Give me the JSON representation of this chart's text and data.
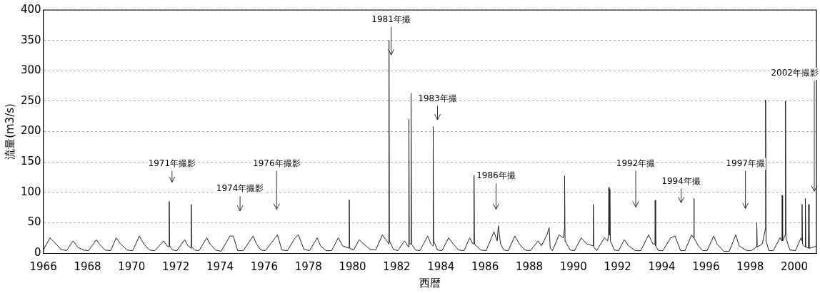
{
  "chart_data": {
    "type": "line",
    "xlabel": "西暦",
    "ylabel": "流量(m3/s)",
    "xlim": [
      1966,
      2001
    ],
    "xticks": [
      1966,
      1968,
      1970,
      1972,
      1974,
      1976,
      1978,
      1980,
      1982,
      1984,
      1986,
      1988,
      1990,
      1992,
      1994,
      1996,
      1998,
      2000
    ],
    "ylim": [
      0,
      400
    ],
    "yticks": [
      0,
      50,
      100,
      150,
      200,
      250,
      300,
      350,
      400
    ],
    "grid": "y",
    "marker": "none",
    "line_style": "solid",
    "legend": false,
    "series": [
      {
        "color": "#222222",
        "x": [
          1966.0,
          1966.3,
          1966.5,
          1966.8,
          1967.05,
          1967.35,
          1967.55,
          1967.8,
          1968.05,
          1968.4,
          1968.55,
          1968.8,
          1969.05,
          1969.3,
          1969.5,
          1969.8,
          1970.05,
          1970.35,
          1970.55,
          1970.8,
          1971.05,
          1971.45,
          1971.6,
          1971.69,
          1971.7,
          1971.72,
          1971.85,
          1972.05,
          1972.4,
          1972.55,
          1972.69,
          1972.7,
          1972.72,
          1972.85,
          1973.05,
          1973.4,
          1973.55,
          1973.8,
          1974.05,
          1974.45,
          1974.6,
          1974.8,
          1975.05,
          1975.5,
          1975.65,
          1975.85,
          1976.05,
          1976.5,
          1976.6,
          1976.8,
          1977.05,
          1977.4,
          1977.55,
          1977.8,
          1978.05,
          1978.4,
          1978.55,
          1978.8,
          1979.05,
          1979.35,
          1979.55,
          1979.84,
          1979.85,
          1979.87,
          1980.05,
          1980.3,
          1980.5,
          1980.8,
          1981.05,
          1981.35,
          1981.55,
          1981.64,
          1981.65,
          1981.67,
          1981.85,
          1982.05,
          1982.35,
          1982.5,
          1982.54,
          1982.55,
          1982.57,
          1982.64,
          1982.65,
          1982.67,
          1982.85,
          1983.05,
          1983.4,
          1983.55,
          1983.64,
          1983.65,
          1983.67,
          1983.85,
          1984.05,
          1984.35,
          1984.55,
          1984.8,
          1985.05,
          1985.3,
          1985.45,
          1985.49,
          1985.5,
          1985.52,
          1985.8,
          1986.05,
          1986.4,
          1986.55,
          1986.6,
          1986.7,
          1986.85,
          1987.05,
          1987.35,
          1987.55,
          1987.8,
          1988.05,
          1988.4,
          1988.55,
          1988.8,
          1988.9,
          1988.95,
          1989.05,
          1989.35,
          1989.55,
          1989.59,
          1989.6,
          1989.62,
          1989.85,
          1990.05,
          1990.35,
          1990.6,
          1990.89,
          1990.9,
          1990.92,
          1991.05,
          1991.4,
          1991.55,
          1991.59,
          1991.6,
          1991.62,
          1991.64,
          1991.65,
          1991.67,
          1991.85,
          1992.05,
          1992.3,
          1992.5,
          1992.8,
          1993.05,
          1993.4,
          1993.6,
          1993.69,
          1993.7,
          1993.72,
          1993.85,
          1994.05,
          1994.4,
          1994.6,
          1994.85,
          1995.05,
          1995.35,
          1995.44,
          1995.45,
          1995.47,
          1995.65,
          1995.85,
          1996.05,
          1996.35,
          1996.5,
          1996.8,
          1997.05,
          1997.35,
          1997.5,
          1997.85,
          1998.05,
          1998.29,
          1998.3,
          1998.32,
          1998.55,
          1998.69,
          1998.7,
          1998.72,
          1998.85,
          1999.05,
          1999.35,
          1999.44,
          1999.45,
          1999.47,
          1999.59,
          1999.6,
          1999.62,
          1999.8,
          2000.05,
          2000.3,
          2000.34,
          2000.35,
          2000.37,
          2000.49,
          2000.5,
          2000.52,
          2000.64,
          2000.65,
          2000.67,
          2000.9,
          2001.0
        ],
        "values": [
          5,
          25,
          18,
          6,
          4,
          20,
          10,
          5,
          4,
          22,
          14,
          5,
          4,
          25,
          15,
          5,
          4,
          28,
          15,
          5,
          4,
          20,
          12,
          10,
          85,
          12,
          5,
          4,
          22,
          12,
          8,
          80,
          10,
          5,
          4,
          25,
          15,
          5,
          3,
          28,
          28,
          4,
          4,
          28,
          15,
          5,
          4,
          25,
          30,
          5,
          4,
          25,
          30,
          6,
          4,
          25,
          12,
          4,
          4,
          25,
          12,
          8,
          88,
          8,
          5,
          22,
          15,
          6,
          5,
          30,
          20,
          15,
          350,
          20,
          6,
          4,
          20,
          12,
          10,
          220,
          15,
          15,
          263,
          15,
          5,
          4,
          28,
          15,
          12,
          208,
          20,
          5,
          4,
          25,
          15,
          5,
          4,
          25,
          15,
          15,
          128,
          15,
          5,
          4,
          35,
          20,
          45,
          15,
          5,
          4,
          28,
          15,
          5,
          4,
          20,
          12,
          30,
          42,
          8,
          4,
          30,
          25,
          40,
          127,
          20,
          5,
          4,
          25,
          15,
          12,
          80,
          10,
          4,
          25,
          20,
          30,
          108,
          30,
          30,
          105,
          20,
          5,
          4,
          22,
          12,
          4,
          4,
          30,
          15,
          15,
          87,
          12,
          4,
          4,
          25,
          28,
          4,
          4,
          30,
          25,
          90,
          25,
          12,
          4,
          4,
          28,
          15,
          3,
          3,
          30,
          12,
          4,
          4,
          10,
          50,
          10,
          15,
          40,
          252,
          20,
          4,
          4,
          25,
          20,
          95,
          20,
          30,
          250,
          25,
          5,
          4,
          25,
          20,
          80,
          15,
          10,
          90,
          10,
          8,
          80,
          8,
          10,
          12
        ]
      }
    ],
    "annotations": [
      "1971年撮影",
      "1974年撮影",
      "1976年撮影",
      {
        "text": "1981年撮",
        "x": 1981.65,
        "y": 326
      },
      "1983年撮",
      "1986年撮",
      "1992年撮",
      "1994年撮",
      "1997年撮",
      "2002年撮影"
    ]
  }
}
